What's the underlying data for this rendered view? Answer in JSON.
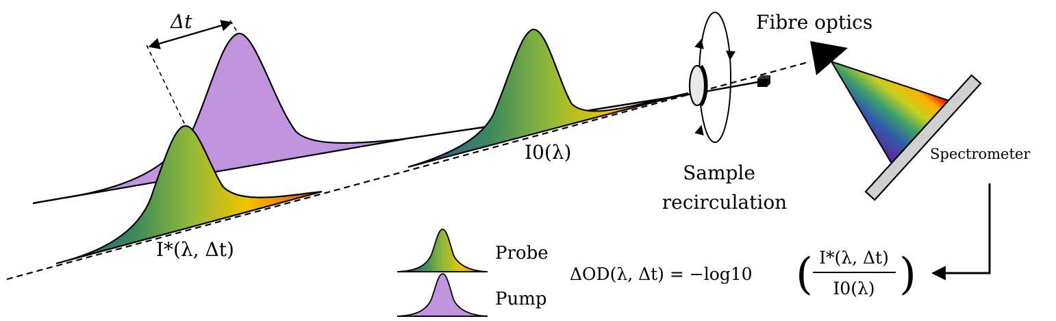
{
  "labels": {
    "delta_t": "Δt",
    "fibre_optics": "Fibre optics",
    "sample_line1": "Sample",
    "sample_line2": "recirculation",
    "spectrometer": "Spectrometer",
    "i_star": "I*(λ, Δt)",
    "i_zero": "I0(λ)"
  },
  "legend": {
    "probe": "Probe",
    "pump": "Pump"
  },
  "equation": {
    "lhs": "ΔOD(λ, Δt) = −log10",
    "numerator": "I*(λ, Δt)",
    "denominator": "I0(λ)"
  },
  "colors": {
    "pump": "#c095de",
    "probe_gradient": [
      "#2f4f9a",
      "#3e8a5a",
      "#8fb83a",
      "#f2c400",
      "#f07a00",
      "#e81e00"
    ],
    "spectrum_gradient": [
      "#5a2a9a",
      "#2f5faa",
      "#3ea06a",
      "#c8d020",
      "#ffb000",
      "#e80000"
    ]
  }
}
